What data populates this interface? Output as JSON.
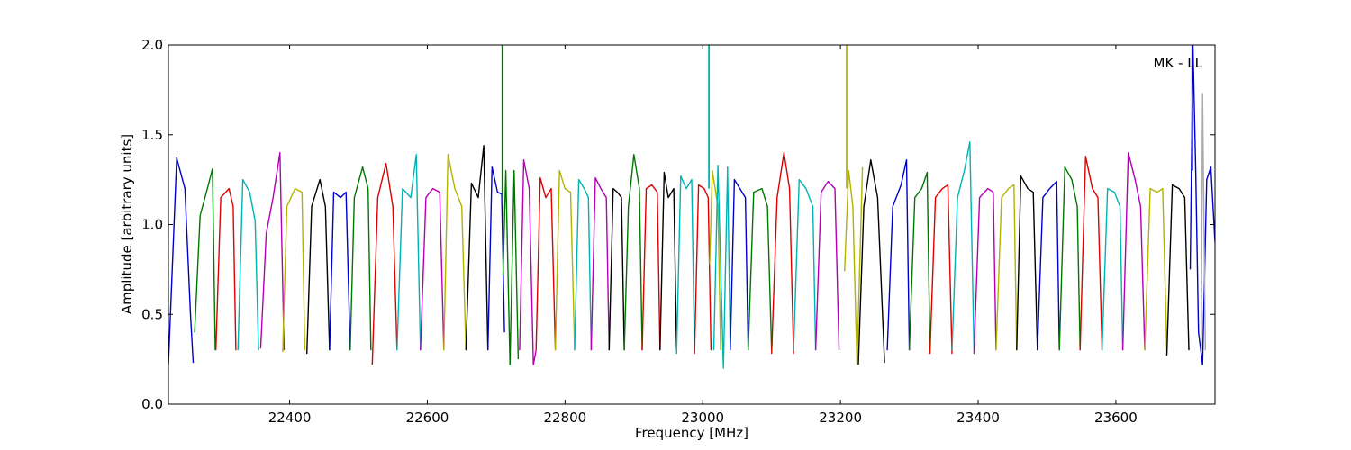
{
  "chart_data": {
    "type": "line",
    "title": "",
    "xlabel": "Frequency [MHz]",
    "ylabel": "Amplitude [arbitrary units]",
    "annotation": "MK - LL",
    "xlim": [
      22224,
      23744
    ],
    "ylim": [
      0.0,
      2.0
    ],
    "x_ticks": [
      22400,
      22600,
      22800,
      23000,
      23200,
      23400,
      23600
    ],
    "y_ticks": [
      0.0,
      0.5,
      1.0,
      1.5,
      2.0
    ],
    "x_tick_labels": [
      "22400",
      "22600",
      "22800",
      "23000",
      "23200",
      "23400",
      "23600"
    ],
    "y_tick_labels": [
      "0.0",
      "0.5",
      "1.0",
      "1.5",
      "2.0"
    ],
    "grid": false,
    "legend": "none",
    "colors": {
      "blue": "#0000cc",
      "green": "#007700",
      "red": "#dd0000",
      "cyan": "#00b3b3",
      "magenta": "#b300b3",
      "olive": "#b3b300",
      "black": "#000000",
      "gray": "#aaaaaa"
    },
    "series": [
      {
        "color": "blue",
        "x": [
          22224,
          22236,
          22248,
          22256,
          22260
        ],
        "y": [
          0.22,
          1.37,
          1.2,
          0.5,
          0.23
        ]
      },
      {
        "color": "green",
        "x": [
          22262,
          22270,
          22282,
          22288,
          22292
        ],
        "y": [
          0.4,
          1.05,
          1.22,
          1.31,
          0.3
        ]
      },
      {
        "color": "red",
        "x": [
          22293,
          22300,
          22312,
          22318,
          22322
        ],
        "y": [
          0.3,
          1.15,
          1.2,
          1.1,
          0.3
        ]
      },
      {
        "color": "cyan",
        "x": [
          22325,
          22332,
          22342,
          22350,
          22355
        ],
        "y": [
          0.3,
          1.25,
          1.18,
          1.02,
          0.3
        ]
      },
      {
        "color": "magenta",
        "x": [
          22358,
          22366,
          22376,
          22386,
          22392
        ],
        "y": [
          0.31,
          0.95,
          1.15,
          1.4,
          0.3
        ]
      },
      {
        "color": "olive",
        "x": [
          22390,
          22396,
          22408,
          22418,
          22422
        ],
        "y": [
          0.29,
          1.1,
          1.2,
          1.18,
          0.3
        ]
      },
      {
        "color": "black",
        "x": [
          22425,
          22432,
          22444,
          22452,
          22458
        ],
        "y": [
          0.28,
          1.1,
          1.25,
          1.1,
          0.3
        ]
      },
      {
        "color": "blue",
        "x": [
          22458,
          22464,
          22474,
          22482,
          22488
        ],
        "y": [
          0.3,
          1.18,
          1.15,
          1.18,
          0.3
        ]
      },
      {
        "color": "green",
        "x": [
          22488,
          22494,
          22506,
          22514,
          22518
        ],
        "y": [
          0.3,
          1.15,
          1.32,
          1.2,
          0.3
        ]
      },
      {
        "color": "red",
        "x": [
          22520,
          22528,
          22540,
          22550,
          22556
        ],
        "y": [
          0.22,
          1.15,
          1.34,
          1.1,
          0.3
        ]
      },
      {
        "color": "cyan",
        "x": [
          22556,
          22564,
          22576,
          22584,
          22590
        ],
        "y": [
          0.3,
          1.2,
          1.15,
          1.39,
          0.3
        ]
      },
      {
        "color": "magenta",
        "x": [
          22590,
          22598,
          22608,
          22618,
          22624
        ],
        "y": [
          0.3,
          1.15,
          1.2,
          1.18,
          0.3
        ]
      },
      {
        "color": "olive",
        "x": [
          22624,
          22630,
          22640,
          22650,
          22656
        ],
        "y": [
          0.3,
          1.39,
          1.2,
          1.1,
          0.3
        ]
      },
      {
        "color": "black",
        "x": [
          22656,
          22664,
          22674,
          22682,
          22688
        ],
        "y": [
          0.3,
          1.23,
          1.15,
          1.44,
          0.3
        ]
      },
      {
        "color": "blue",
        "x": [
          22688,
          22694,
          22702,
          22708,
          22712
        ],
        "y": [
          0.3,
          1.32,
          1.18,
          1.17,
          0.4
        ]
      },
      {
        "color": "green",
        "x": [
          22710,
          22714,
          22720,
          22726,
          22732
        ],
        "y": [
          0.72,
          1.3,
          0.22,
          1.3,
          0.25
        ]
      },
      {
        "color": "magenta",
        "x": [
          22734,
          22740,
          22748,
          22754,
          22758
        ],
        "y": [
          0.3,
          1.36,
          1.2,
          0.22,
          0.3
        ]
      },
      {
        "color": "red",
        "x": [
          22758,
          22764,
          22772,
          22780,
          22786
        ],
        "y": [
          0.3,
          1.26,
          1.15,
          1.2,
          0.3
        ]
      },
      {
        "color": "olive",
        "x": [
          22786,
          22792,
          22800,
          22808,
          22814
        ],
        "y": [
          0.3,
          1.3,
          1.2,
          1.18,
          0.3
        ]
      },
      {
        "color": "cyan",
        "x": [
          22814,
          22820,
          22828,
          22834,
          22838
        ],
        "y": [
          0.3,
          1.25,
          1.2,
          1.15,
          0.3
        ]
      },
      {
        "color": "magenta",
        "x": [
          22838,
          22844,
          22852,
          22860,
          22864
        ],
        "y": [
          0.3,
          1.26,
          1.2,
          1.15,
          0.3
        ]
      },
      {
        "color": "black",
        "x": [
          22864,
          22870,
          22876,
          22882,
          22886
        ],
        "y": [
          0.3,
          1.2,
          1.18,
          1.15,
          0.3
        ]
      },
      {
        "color": "green",
        "x": [
          22886,
          22892,
          22900,
          22908,
          22912
        ],
        "y": [
          0.3,
          1.1,
          1.39,
          1.2,
          0.3
        ]
      },
      {
        "color": "red",
        "x": [
          22912,
          22918,
          22926,
          22934,
          22938
        ],
        "y": [
          0.3,
          1.2,
          1.22,
          1.18,
          0.3
        ]
      },
      {
        "color": "black",
        "x": [
          22938,
          22944,
          22950,
          22958,
          22962
        ],
        "y": [
          0.3,
          1.29,
          1.15,
          1.2,
          0.3
        ]
      },
      {
        "color": "cyan",
        "x": [
          22962,
          22968,
          22976,
          22984,
          22988
        ],
        "y": [
          0.28,
          1.27,
          1.2,
          1.25,
          0.3
        ]
      },
      {
        "color": "red",
        "x": [
          22988,
          22994,
          23002,
          23008,
          23012
        ],
        "y": [
          0.28,
          1.22,
          1.2,
          1.15,
          0.3
        ]
      },
      {
        "color": "olive",
        "x": [
          23010,
          23014,
          23018,
          23022,
          23026
        ],
        "y": [
          0.78,
          1.3,
          1.2,
          1.1,
          0.3
        ]
      },
      {
        "color": "cyan",
        "x": [
          23016,
          23022,
          23030,
          23036,
          23040
        ],
        "y": [
          0.3,
          1.33,
          0.2,
          1.32,
          0.3
        ]
      },
      {
        "color": "blue",
        "x": [
          23040,
          23046,
          23054,
          23062,
          23066
        ],
        "y": [
          0.3,
          1.25,
          1.2,
          1.15,
          0.3
        ]
      },
      {
        "color": "green",
        "x": [
          23066,
          23074,
          23086,
          23094,
          23100
        ],
        "y": [
          0.3,
          1.18,
          1.2,
          1.1,
          0.3
        ]
      },
      {
        "color": "red",
        "x": [
          23100,
          23108,
          23118,
          23126,
          23132
        ],
        "y": [
          0.28,
          1.15,
          1.4,
          1.2,
          0.28
        ]
      },
      {
        "color": "cyan",
        "x": [
          23132,
          23140,
          23150,
          23160,
          23164
        ],
        "y": [
          0.3,
          1.25,
          1.2,
          1.1,
          0.3
        ]
      },
      {
        "color": "magenta",
        "x": [
          23164,
          23172,
          23182,
          23192,
          23198
        ],
        "y": [
          0.3,
          1.18,
          1.24,
          1.2,
          0.3
        ]
      },
      {
        "color": "olive",
        "x": [
          23206,
          23212,
          23218,
          23224,
          23232
        ],
        "y": [
          0.74,
          1.3,
          1.1,
          0.22,
          1.32
        ]
      },
      {
        "color": "black",
        "x": [
          23226,
          23234,
          23244,
          23254,
          23264
        ],
        "y": [
          0.22,
          1.1,
          1.36,
          1.15,
          0.23
        ]
      },
      {
        "color": "blue",
        "x": [
          23268,
          23276,
          23288,
          23296,
          23300
        ],
        "y": [
          0.3,
          1.1,
          1.22,
          1.36,
          0.3
        ]
      },
      {
        "color": "green",
        "x": [
          23300,
          23308,
          23318,
          23326,
          23330
        ],
        "y": [
          0.3,
          1.15,
          1.2,
          1.29,
          0.3
        ]
      },
      {
        "color": "red",
        "x": [
          23330,
          23338,
          23348,
          23356,
          23362
        ],
        "y": [
          0.28,
          1.15,
          1.2,
          1.22,
          0.28
        ]
      },
      {
        "color": "cyan",
        "x": [
          23362,
          23370,
          23380,
          23388,
          23394
        ],
        "y": [
          0.3,
          1.15,
          1.3,
          1.46,
          0.3
        ]
      },
      {
        "color": "magenta",
        "x": [
          23394,
          23402,
          23414,
          23422,
          23426
        ],
        "y": [
          0.28,
          1.15,
          1.2,
          1.18,
          0.3
        ]
      },
      {
        "color": "olive",
        "x": [
          23426,
          23434,
          23444,
          23452,
          23456
        ],
        "y": [
          0.3,
          1.15,
          1.2,
          1.22,
          0.3
        ]
      },
      {
        "color": "black",
        "x": [
          23456,
          23462,
          23472,
          23480,
          23486
        ],
        "y": [
          0.3,
          1.27,
          1.2,
          1.18,
          0.3
        ]
      },
      {
        "color": "blue",
        "x": [
          23486,
          23494,
          23504,
          23514,
          23518
        ],
        "y": [
          0.3,
          1.15,
          1.2,
          1.24,
          0.3
        ]
      },
      {
        "color": "green",
        "x": [
          23518,
          23526,
          23536,
          23544,
          23548
        ],
        "y": [
          0.3,
          1.32,
          1.25,
          1.1,
          0.3
        ]
      },
      {
        "color": "red",
        "x": [
          23548,
          23556,
          23566,
          23574,
          23580
        ],
        "y": [
          0.3,
          1.38,
          1.2,
          1.15,
          0.3
        ]
      },
      {
        "color": "cyan",
        "x": [
          23580,
          23588,
          23598,
          23606,
          23610
        ],
        "y": [
          0.3,
          1.2,
          1.18,
          1.1,
          0.3
        ]
      },
      {
        "color": "magenta",
        "x": [
          23610,
          23618,
          23628,
          23636,
          23642
        ],
        "y": [
          0.3,
          1.4,
          1.25,
          1.1,
          0.3
        ]
      },
      {
        "color": "olive",
        "x": [
          23642,
          23650,
          23660,
          23668,
          23674
        ],
        "y": [
          0.3,
          1.2,
          1.18,
          1.2,
          0.3
        ]
      },
      {
        "color": "black",
        "x": [
          23674,
          23682,
          23692,
          23700,
          23706
        ],
        "y": [
          0.27,
          1.22,
          1.2,
          1.15,
          0.3
        ]
      },
      {
        "color": "blue",
        "x": [
          23708,
          23712,
          23716,
          23720,
          23726,
          23732,
          23738,
          23744
        ],
        "y": [
          0.75,
          2.0,
          1.3,
          0.4,
          0.22,
          1.25,
          1.32,
          0.9
        ]
      },
      {
        "color": "gray",
        "x": [
          23724,
          23726,
          23730
        ],
        "y": [
          0.3,
          1.73,
          0.3
        ]
      }
    ],
    "spikes": [
      {
        "color": "green",
        "x": 22709,
        "y_from": 1.15,
        "y_to": 2.0
      },
      {
        "color": "cyan",
        "x": 23009,
        "y_from": 1.2,
        "y_to": 2.0
      },
      {
        "color": "olive",
        "x": 23209,
        "y_from": 1.2,
        "y_to": 2.0
      },
      {
        "color": "blue",
        "x": 23711,
        "y_from": 1.3,
        "y_to": 2.0
      }
    ]
  }
}
